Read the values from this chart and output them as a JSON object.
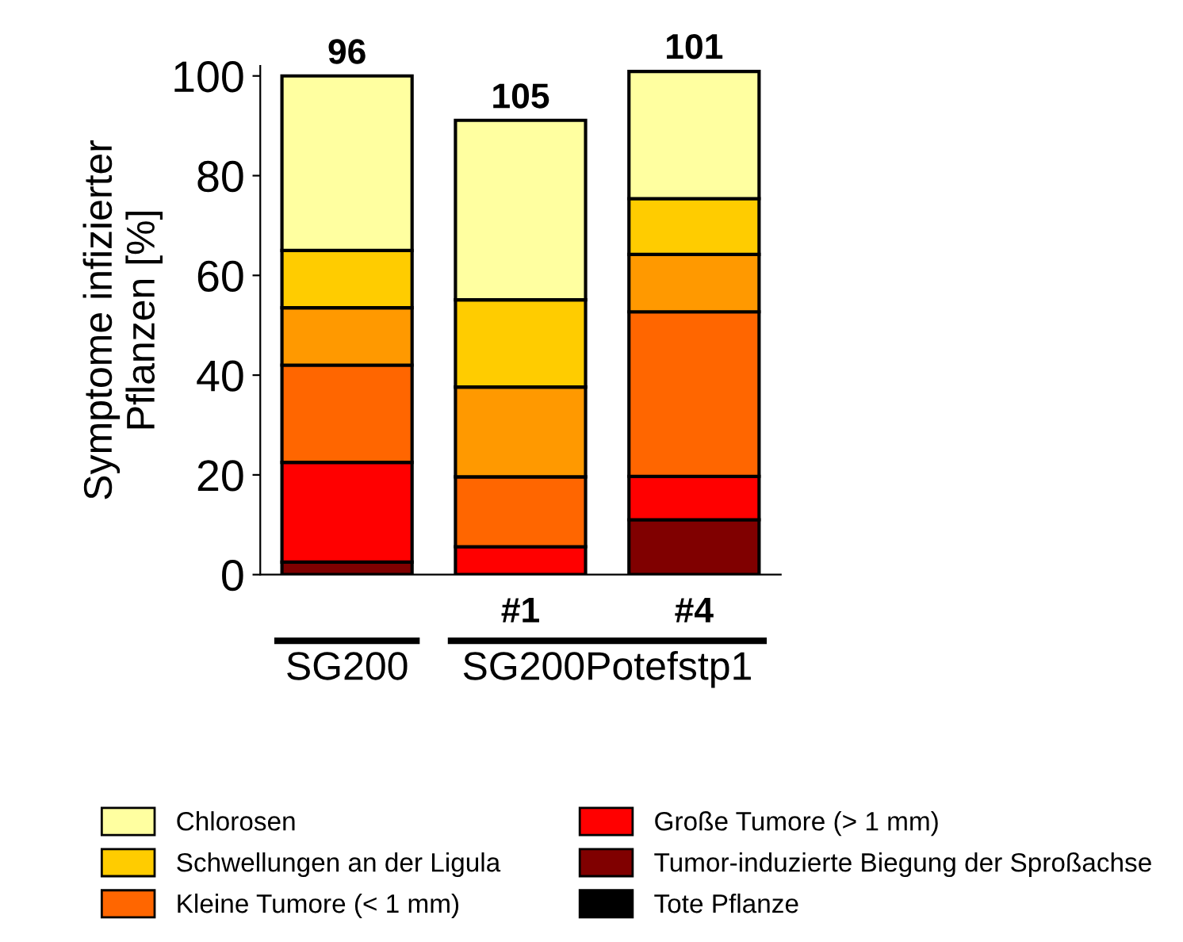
{
  "chart_data": {
    "type": "bar",
    "stacked": true,
    "ylabel": "Symptome infizierter\nPflanzen [%]",
    "categories": [
      null,
      "#1",
      "#4"
    ],
    "series": [
      {
        "name": "Tote Pflanze",
        "color": "#000000",
        "values": [
          0,
          0,
          0
        ]
      },
      {
        "name": "Tumor-induzierte Biegung der Sproßachse",
        "color": "#800000",
        "values": [
          2.5,
          0,
          11
        ]
      },
      {
        "name": "Große Tumore (> 1 mm)",
        "color": "#ff0000",
        "values": [
          20,
          5.6,
          8.7
        ]
      },
      {
        "name": "Kleine Tumore (< 1 mm)",
        "color": "#ff6600",
        "values": [
          19.5,
          14,
          33
        ]
      },
      {
        "color": "#ff9900",
        "values": [
          11.5,
          18,
          11.5
        ]
      },
      {
        "name": "Schwellungen an der Ligula",
        "color": "#ffcc00",
        "values": [
          11.5,
          17.5,
          11.2
        ]
      },
      {
        "name": "Chlorosen",
        "color": "#ffffa0",
        "values": [
          35,
          36,
          25.5
        ]
      }
    ],
    "ylim": [
      0,
      102
    ],
    "yticks": [
      0,
      20,
      40,
      60,
      80,
      100
    ],
    "grid": false,
    "legend": "bottom",
    "annotations": [
      "SG200",
      "SG200Potefstp1",
      {
        "text": "96",
        "y": 100
      },
      {
        "text": "105",
        "x": "#1",
        "y": 91.1
      },
      {
        "text": "101",
        "x": "#4",
        "y": 101
      }
    ]
  }
}
